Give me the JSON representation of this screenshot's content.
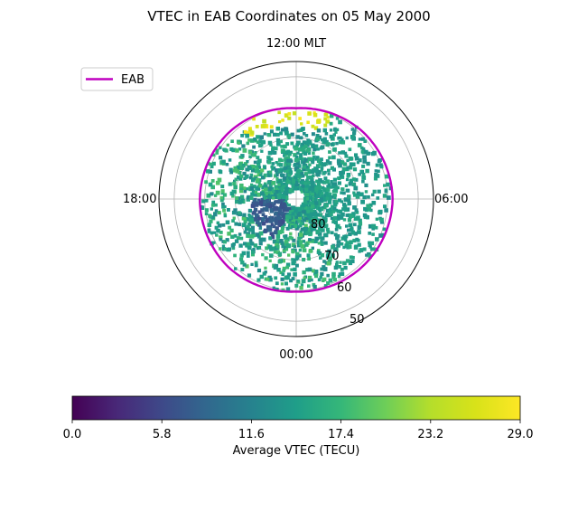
{
  "chart_data": {
    "type": "scatter",
    "projection": "polar",
    "title": "VTEC in EAB Coordinates on 05 May 2000",
    "theta_tick_labels": {
      "top": "12:00 MLT",
      "left": "18:00",
      "right": "06:00",
      "bottom": "00:00"
    },
    "radial_tick_labels": [
      "80",
      "70",
      "60",
      "50"
    ],
    "radial_ticks_deg": [
      80,
      70,
      60,
      50
    ],
    "radial_range_deg": [
      90,
      45
    ],
    "grid": true,
    "legend": {
      "placement": "upper-left",
      "entries": [
        {
          "name": "EAB",
          "color": "#bf00bf"
        }
      ]
    },
    "eab_boundary": {
      "name": "EAB",
      "color": "#bf00bf",
      "mlt_hours": [
        0,
        3,
        6,
        9,
        12,
        15,
        18,
        21
      ],
      "latitude_deg": [
        59.7,
        58.5,
        58.4,
        59.0,
        60.3,
        59.0,
        58.4,
        59.0
      ]
    },
    "colorbar": {
      "label": "Average VTEC (TECU)",
      "colormap": "viridis",
      "range": [
        0.0,
        29.0
      ],
      "tick_labels": [
        "0.0",
        "5.8",
        "11.6",
        "17.4",
        "23.2",
        "29.0"
      ]
    },
    "value_regions": [
      {
        "mlt_hours_range": [
          9.5,
          13.5
        ],
        "latitude_range_deg": [
          60,
          66
        ],
        "vtec_range": [
          24,
          29
        ]
      },
      {
        "mlt_hours_range": [
          13.5,
          22
        ],
        "latitude_range_deg": [
          60,
          84
        ],
        "vtec_range": [
          13,
          16
        ]
      },
      {
        "mlt_hours_range": [
          22,
          9.5
        ],
        "latitude_range_deg": [
          59,
          84
        ],
        "vtec_range": [
          12,
          19
        ]
      },
      {
        "mlt_hours_range": [
          2,
          6
        ],
        "latitude_range_deg": [
          75,
          86
        ],
        "vtec_range": [
          6,
          9
        ]
      }
    ]
  }
}
